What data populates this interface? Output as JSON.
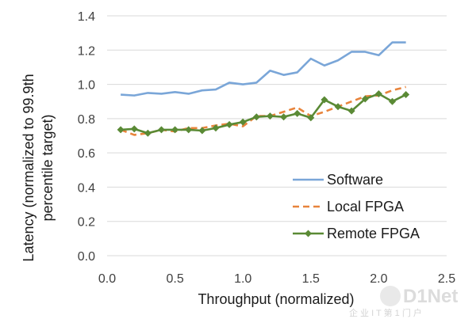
{
  "chart_data": {
    "type": "line",
    "title": "",
    "xlabel": "Throughput (normalized)",
    "ylabel_lines": [
      "Latency (normalized to 99.9th",
      "percentile target)"
    ],
    "xlim": [
      0,
      2.5
    ],
    "ylim": [
      0,
      1.4
    ],
    "x_ticks": [
      "0.0",
      "0.5",
      "1.0",
      "1.5",
      "2.0",
      "2.5"
    ],
    "y_ticks": [
      "0.0",
      "0.2",
      "0.4",
      "0.6",
      "0.8",
      "1.0",
      "1.2",
      "1.4"
    ],
    "grid": "horizontal",
    "legend_position": "bottom-right",
    "series": [
      {
        "name": "Software",
        "style": "solid",
        "color": "#7aa6d8",
        "marker": "none",
        "x": [
          0.1,
          0.2,
          0.3,
          0.4,
          0.5,
          0.6,
          0.7,
          0.8,
          0.9,
          1.0,
          1.1,
          1.2,
          1.3,
          1.4,
          1.5,
          1.6,
          1.7,
          1.8,
          1.9,
          2.0,
          2.1,
          2.2
        ],
        "y": [
          0.94,
          0.935,
          0.95,
          0.945,
          0.955,
          0.945,
          0.965,
          0.97,
          1.01,
          1.0,
          1.01,
          1.08,
          1.055,
          1.07,
          1.15,
          1.11,
          1.14,
          1.19,
          1.19,
          1.17,
          1.245,
          1.245
        ]
      },
      {
        "name": "Local FPGA",
        "style": "dashed",
        "color": "#e8843c",
        "marker": "none",
        "x": [
          0.1,
          0.2,
          0.3,
          0.4,
          0.5,
          0.6,
          0.7,
          0.8,
          0.9,
          1.0,
          1.1,
          1.2,
          1.3,
          1.4,
          1.5,
          1.6,
          1.7,
          1.8,
          1.9,
          2.0,
          2.1,
          2.2
        ],
        "y": [
          0.735,
          0.705,
          0.715,
          0.735,
          0.725,
          0.745,
          0.745,
          0.76,
          0.77,
          0.755,
          0.815,
          0.815,
          0.84,
          0.865,
          0.815,
          0.84,
          0.87,
          0.9,
          0.93,
          0.935,
          0.965,
          0.985
        ]
      },
      {
        "name": "Remote FPGA",
        "style": "solid",
        "color": "#5a8a35",
        "marker": "diamond",
        "x": [
          0.1,
          0.2,
          0.3,
          0.4,
          0.5,
          0.6,
          0.7,
          0.8,
          0.9,
          1.0,
          1.1,
          1.2,
          1.3,
          1.4,
          1.5,
          1.6,
          1.7,
          1.8,
          1.9,
          2.0,
          2.1,
          2.2
        ],
        "y": [
          0.735,
          0.74,
          0.715,
          0.735,
          0.735,
          0.735,
          0.73,
          0.745,
          0.765,
          0.78,
          0.81,
          0.815,
          0.81,
          0.83,
          0.805,
          0.91,
          0.87,
          0.845,
          0.915,
          0.945,
          0.9,
          0.94
        ]
      }
    ]
  },
  "watermark": {
    "brand": "D1Net",
    "sub": "企 业 I T 第 1 门 户"
  }
}
